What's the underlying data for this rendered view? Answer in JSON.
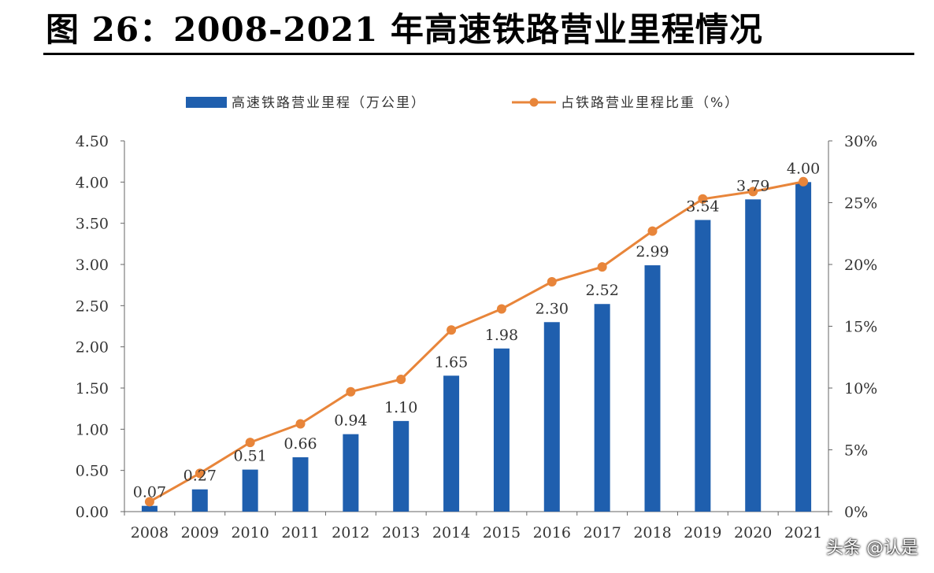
{
  "figure": {
    "title": "图 26：2008-2021 年高速铁路营业里程情况",
    "watermark": "头条 @认是"
  },
  "chart_data": {
    "type": "bar+line",
    "categories": [
      "2008",
      "2009",
      "2010",
      "2011",
      "2012",
      "2013",
      "2014",
      "2015",
      "2016",
      "2017",
      "2018",
      "2019",
      "2020",
      "2021"
    ],
    "series": [
      {
        "name": "高速铁路营业里程（万公里）",
        "type": "bar",
        "axis": "left",
        "color": "#1F5FAE",
        "values": [
          0.07,
          0.27,
          0.51,
          0.66,
          0.94,
          1.1,
          1.65,
          1.98,
          2.3,
          2.52,
          2.99,
          3.54,
          3.79,
          4.0
        ],
        "labels": [
          "0.07",
          "0.27",
          "0.51",
          "0.66",
          "0.94",
          "1.10",
          "1.65",
          "1.98",
          "2.30",
          "2.52",
          "2.99",
          "3.54",
          "3.79",
          "4.00"
        ]
      },
      {
        "name": "占铁路营业里程比重（%）",
        "type": "line",
        "axis": "right",
        "color": "#E8853A",
        "values": [
          0.8,
          3.1,
          5.6,
          7.1,
          9.7,
          10.7,
          14.7,
          16.4,
          18.6,
          19.8,
          22.7,
          25.3,
          25.9,
          26.7
        ]
      }
    ],
    "left_axis": {
      "min": 0,
      "max": 4.5,
      "ticks": [
        "0.00",
        "0.50",
        "1.00",
        "1.50",
        "2.00",
        "2.50",
        "3.00",
        "3.50",
        "4.00",
        "4.50"
      ]
    },
    "right_axis": {
      "min": 0,
      "max": 30,
      "ticks": [
        "0%",
        "5%",
        "10%",
        "15%",
        "20%",
        "25%",
        "30%"
      ]
    },
    "legend_position": "top",
    "grid": false
  }
}
